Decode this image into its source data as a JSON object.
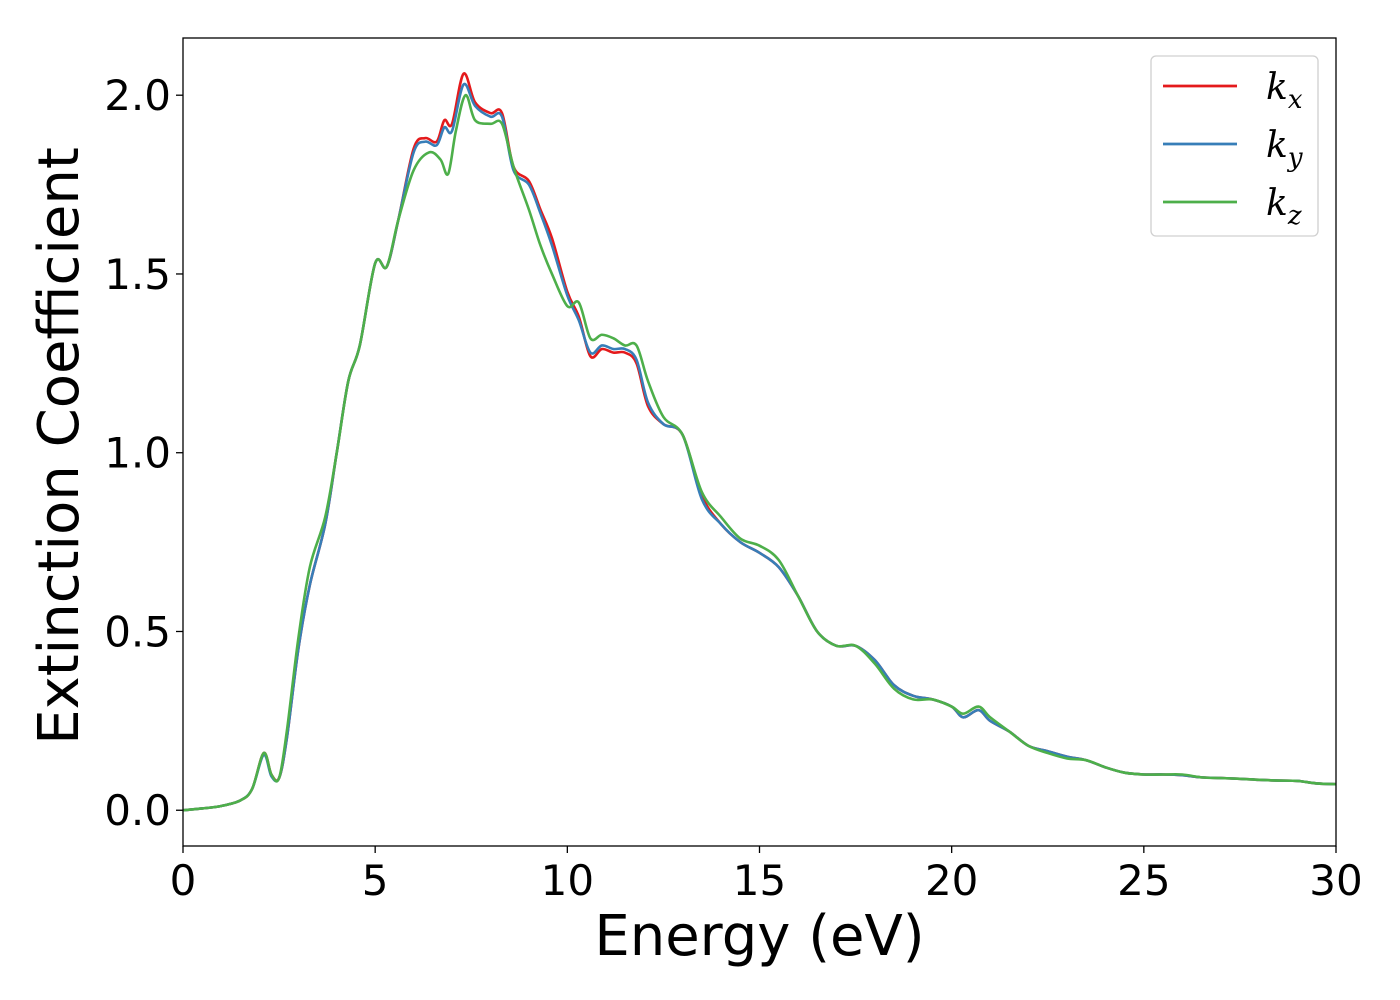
{
  "chart_data": {
    "type": "line",
    "xlabel": "Energy (eV)",
    "ylabel": "Extinction Coefficient",
    "xlim": [
      0,
      30
    ],
    "ylim": [
      -0.1,
      2.16
    ],
    "xticks": [
      0,
      5,
      10,
      15,
      20,
      25,
      30
    ],
    "xtick_labels": [
      "0",
      "5",
      "10",
      "15",
      "20",
      "25",
      "30"
    ],
    "yticks": [
      0.0,
      0.5,
      1.0,
      1.5,
      2.0
    ],
    "ytick_labels": [
      "0.0",
      "0.5",
      "1.0",
      "1.5",
      "2.0"
    ],
    "grid": false,
    "legend_position": "top-right",
    "series": [
      {
        "name": "k_x",
        "label_base": "k",
        "label_sub": "x",
        "color": "#e41a1c",
        "x": [
          0,
          0.5,
          1,
          1.5,
          1.8,
          2.1,
          2.3,
          2.5,
          2.7,
          3.0,
          3.3,
          3.7,
          4.0,
          4.3,
          4.6,
          5.0,
          5.3,
          5.6,
          6.0,
          6.3,
          6.6,
          6.8,
          7.0,
          7.3,
          7.6,
          8.0,
          8.3,
          8.6,
          9.0,
          9.3,
          9.6,
          10.0,
          10.3,
          10.6,
          10.9,
          11.2,
          11.5,
          11.8,
          12.1,
          12.5,
          13.0,
          13.5,
          14.0,
          14.5,
          15.0,
          15.5,
          16.0,
          16.5,
          17.0,
          17.5,
          18.0,
          18.5,
          19.0,
          19.5,
          20.0,
          20.3,
          20.7,
          21.0,
          21.5,
          22.0,
          22.5,
          23.0,
          23.5,
          24.0,
          24.5,
          25.0,
          25.5,
          26.0,
          26.5,
          27.0,
          27.5,
          28.0,
          28.5,
          29.0,
          29.5,
          30.0
        ],
        "values": [
          0.0,
          0.005,
          0.012,
          0.028,
          0.06,
          0.16,
          0.1,
          0.09,
          0.2,
          0.45,
          0.63,
          0.8,
          1.0,
          1.2,
          1.3,
          1.53,
          1.52,
          1.65,
          1.85,
          1.88,
          1.87,
          1.93,
          1.92,
          2.06,
          1.98,
          1.95,
          1.95,
          1.8,
          1.76,
          1.68,
          1.6,
          1.45,
          1.38,
          1.27,
          1.29,
          1.28,
          1.28,
          1.25,
          1.13,
          1.08,
          1.05,
          0.88,
          0.8,
          0.75,
          0.72,
          0.68,
          0.6,
          0.5,
          0.46,
          0.46,
          0.42,
          0.35,
          0.32,
          0.31,
          0.29,
          0.26,
          0.28,
          0.25,
          0.22,
          0.18,
          0.165,
          0.15,
          0.14,
          0.12,
          0.105,
          0.1,
          0.1,
          0.098,
          0.092,
          0.09,
          0.088,
          0.085,
          0.083,
          0.082,
          0.075,
          0.073
        ]
      },
      {
        "name": "k_y",
        "label_base": "k",
        "label_sub": "y",
        "color": "#377eb8",
        "x": [
          0,
          0.5,
          1,
          1.5,
          1.8,
          2.1,
          2.3,
          2.5,
          2.7,
          3.0,
          3.3,
          3.7,
          4.0,
          4.3,
          4.6,
          5.0,
          5.3,
          5.6,
          6.0,
          6.3,
          6.6,
          6.8,
          7.0,
          7.3,
          7.6,
          8.0,
          8.3,
          8.6,
          9.0,
          9.3,
          9.6,
          10.0,
          10.3,
          10.6,
          10.9,
          11.2,
          11.5,
          11.8,
          12.1,
          12.5,
          13.0,
          13.5,
          14.0,
          14.5,
          15.0,
          15.5,
          16.0,
          16.5,
          17.0,
          17.5,
          18.0,
          18.5,
          19.0,
          19.5,
          20.0,
          20.3,
          20.7,
          21.0,
          21.5,
          22.0,
          22.5,
          23.0,
          23.5,
          24.0,
          24.5,
          25.0,
          25.5,
          26.0,
          26.5,
          27.0,
          27.5,
          28.0,
          28.5,
          29.0,
          29.5,
          30.0
        ],
        "values": [
          0.0,
          0.005,
          0.012,
          0.028,
          0.06,
          0.155,
          0.095,
          0.09,
          0.2,
          0.45,
          0.63,
          0.8,
          1.0,
          1.2,
          1.3,
          1.53,
          1.52,
          1.65,
          1.84,
          1.87,
          1.86,
          1.91,
          1.9,
          2.03,
          1.97,
          1.94,
          1.94,
          1.79,
          1.75,
          1.67,
          1.58,
          1.44,
          1.37,
          1.28,
          1.3,
          1.29,
          1.29,
          1.26,
          1.14,
          1.08,
          1.05,
          0.87,
          0.8,
          0.75,
          0.72,
          0.68,
          0.6,
          0.5,
          0.46,
          0.46,
          0.42,
          0.35,
          0.32,
          0.31,
          0.29,
          0.26,
          0.28,
          0.25,
          0.22,
          0.18,
          0.165,
          0.15,
          0.14,
          0.12,
          0.105,
          0.1,
          0.1,
          0.098,
          0.092,
          0.09,
          0.088,
          0.085,
          0.083,
          0.082,
          0.075,
          0.073
        ]
      },
      {
        "name": "k_z",
        "label_base": "k",
        "label_sub": "z",
        "color": "#4daf4a",
        "x": [
          0,
          0.5,
          1,
          1.5,
          1.8,
          2.1,
          2.3,
          2.5,
          2.7,
          3.0,
          3.3,
          3.7,
          4.0,
          4.3,
          4.6,
          5.0,
          5.3,
          5.6,
          6.0,
          6.4,
          6.7,
          6.9,
          7.1,
          7.35,
          7.6,
          8.0,
          8.3,
          8.6,
          9.0,
          9.3,
          9.6,
          10.0,
          10.3,
          10.6,
          10.9,
          11.2,
          11.5,
          11.8,
          12.1,
          12.5,
          13.0,
          13.5,
          14.0,
          14.5,
          15.0,
          15.5,
          16.0,
          16.5,
          17.0,
          17.5,
          18.0,
          18.5,
          19.0,
          19.5,
          20.0,
          20.3,
          20.7,
          21.0,
          21.5,
          22.0,
          22.5,
          23.0,
          23.5,
          24.0,
          24.5,
          25.0,
          25.5,
          26.0,
          26.5,
          27.0,
          27.5,
          28.0,
          28.5,
          29.0,
          29.5,
          30.0
        ],
        "values": [
          0.0,
          0.005,
          0.012,
          0.028,
          0.06,
          0.16,
          0.1,
          0.09,
          0.22,
          0.48,
          0.68,
          0.82,
          1.0,
          1.2,
          1.3,
          1.53,
          1.52,
          1.65,
          1.79,
          1.84,
          1.82,
          1.78,
          1.9,
          2.0,
          1.93,
          1.92,
          1.92,
          1.8,
          1.68,
          1.58,
          1.5,
          1.41,
          1.42,
          1.32,
          1.33,
          1.32,
          1.3,
          1.3,
          1.2,
          1.1,
          1.05,
          0.89,
          0.82,
          0.76,
          0.74,
          0.7,
          0.6,
          0.5,
          0.46,
          0.46,
          0.41,
          0.34,
          0.31,
          0.31,
          0.29,
          0.27,
          0.29,
          0.26,
          0.22,
          0.18,
          0.16,
          0.145,
          0.14,
          0.12,
          0.105,
          0.1,
          0.1,
          0.1,
          0.092,
          0.09,
          0.088,
          0.085,
          0.083,
          0.082,
          0.075,
          0.073
        ]
      }
    ]
  }
}
